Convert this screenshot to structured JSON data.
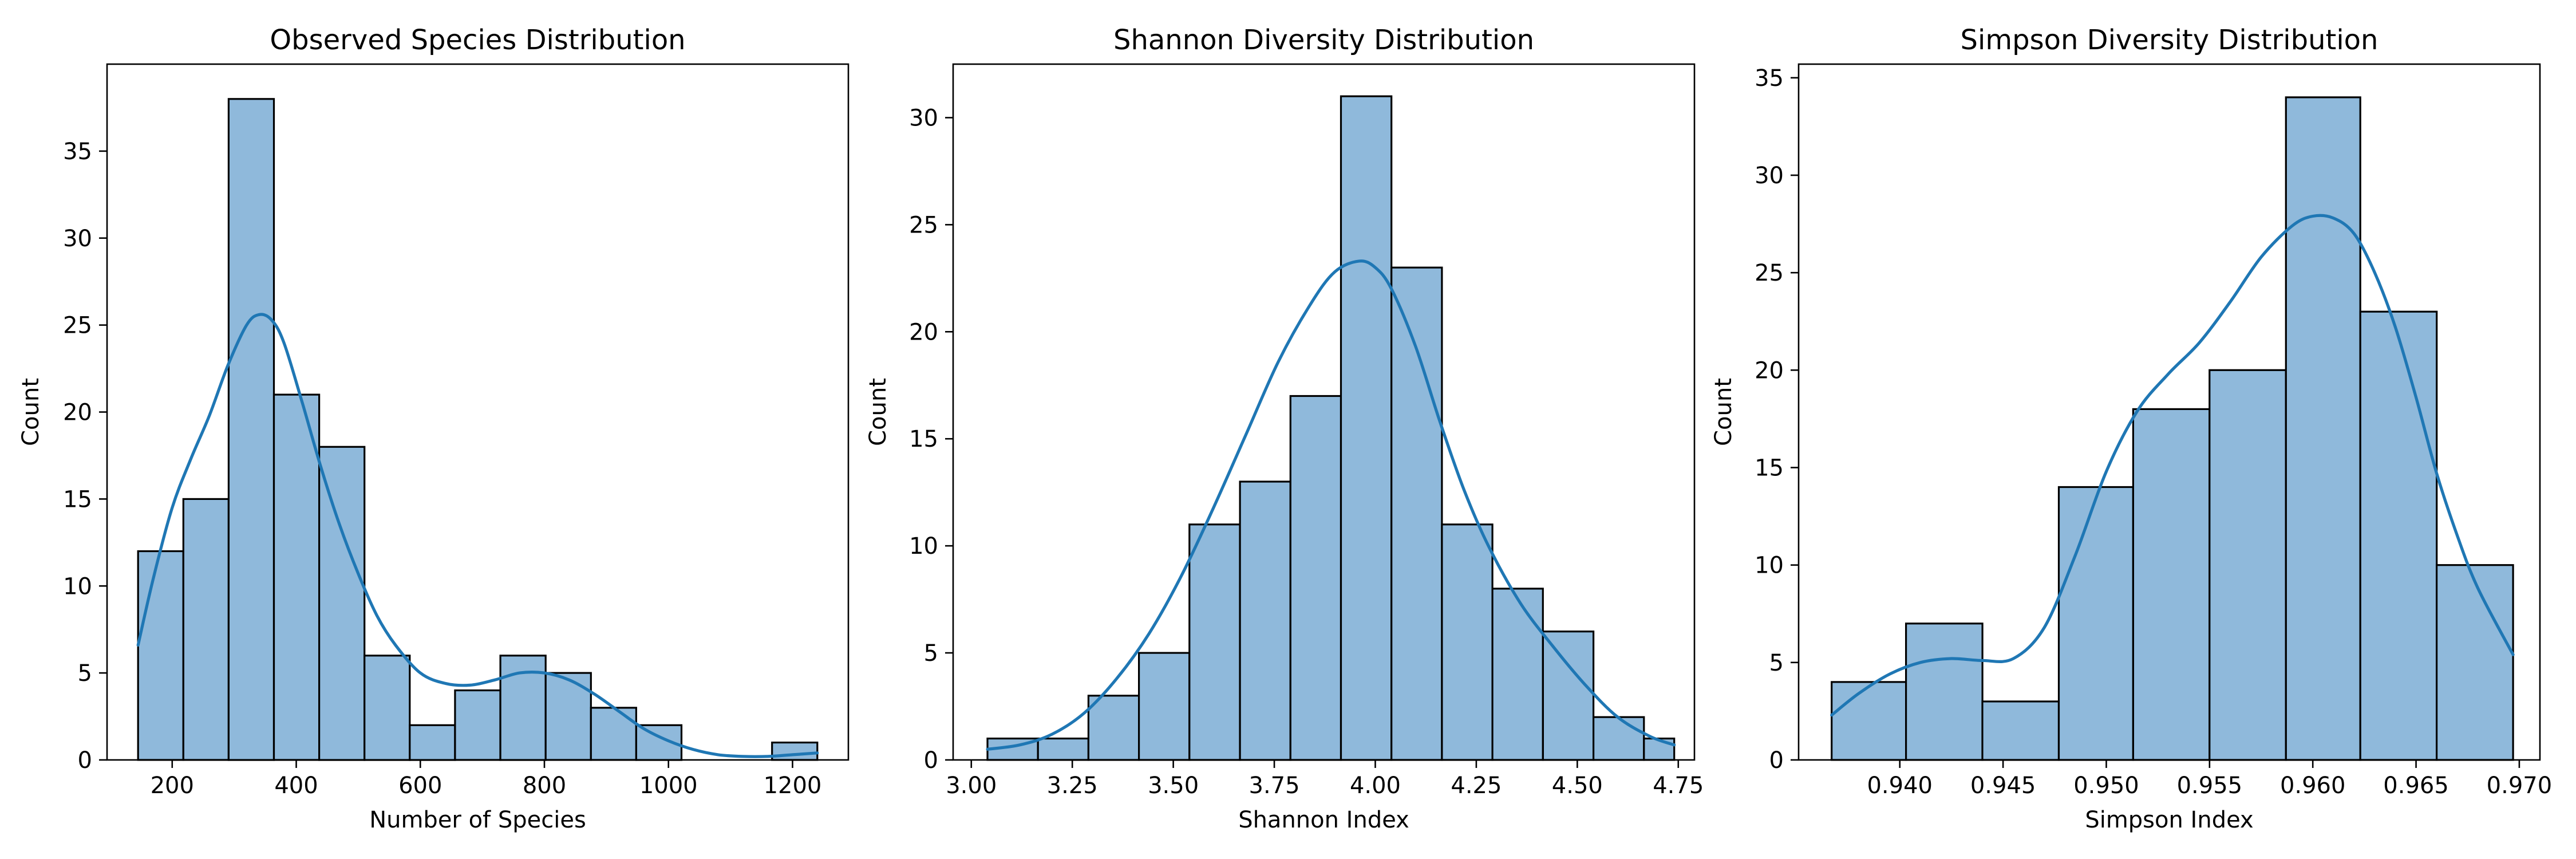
{
  "figure": {
    "background": "#ffffff",
    "bar_fill": "#8fb9db",
    "bar_edge": "#000000",
    "kde_color": "#1f77b4"
  },
  "chart_data": [
    {
      "type": "bar",
      "title": "Observed Species Distribution",
      "xlabel": "Number of Species",
      "ylabel": "Count",
      "xlim": [
        95,
        1290
      ],
      "ylim": [
        0,
        40
      ],
      "xticks": [
        200,
        400,
        600,
        800,
        1000,
        1200
      ],
      "yticks": [
        0,
        5,
        10,
        15,
        20,
        25,
        30,
        35
      ],
      "bin_edges": [
        145,
        218,
        291,
        364,
        437,
        510,
        583,
        656,
        729,
        802,
        875,
        948,
        1021,
        1094,
        1167,
        1240
      ],
      "counts": [
        12,
        15,
        38,
        21,
        18,
        6,
        2,
        4,
        6,
        5,
        3,
        2,
        0,
        0,
        1
      ],
      "kde": {
        "x": [
          145,
          170,
          200,
          230,
          260,
          290,
          320,
          340,
          360,
          380,
          410,
          440,
          470,
          500,
          530,
          560,
          600,
          640,
          680,
          720,
          760,
          800,
          840,
          880,
          920,
          960,
          1000,
          1040,
          1080,
          1120,
          1160,
          1200,
          1240
        ],
        "y": [
          6.6,
          10.5,
          14.5,
          17.3,
          19.8,
          22.7,
          25.0,
          25.6,
          25.3,
          24.0,
          20.5,
          16.8,
          13.5,
          10.7,
          8.3,
          6.6,
          5.0,
          4.4,
          4.3,
          4.6,
          5.0,
          5.0,
          4.6,
          3.8,
          2.8,
          1.8,
          1.1,
          0.6,
          0.3,
          0.2,
          0.2,
          0.3,
          0.4
        ]
      }
    },
    {
      "type": "bar",
      "title": "Shannon Diversity Distribution",
      "xlabel": "Shannon Index",
      "ylabel": "Count",
      "xlim": [
        2.955,
        4.79
      ],
      "ylim": [
        0,
        32.5
      ],
      "xticks": [
        3.0,
        3.25,
        3.5,
        3.75,
        4.0,
        4.25,
        4.5,
        4.75
      ],
      "tick_labels": [
        "3.00",
        "3.25",
        "3.50",
        "3.75",
        "4.00",
        "4.25",
        "4.50",
        "4.75"
      ],
      "yticks": [
        0,
        5,
        10,
        15,
        20,
        25,
        30
      ],
      "bin_edges": [
        3.04,
        3.165,
        3.29,
        3.415,
        3.54,
        3.665,
        3.79,
        3.915,
        4.04,
        4.165,
        4.29,
        4.415,
        4.54,
        4.665,
        4.74
      ],
      "counts": [
        1,
        1,
        3,
        5,
        11,
        13,
        17,
        31,
        23,
        11,
        8,
        6,
        2,
        1
      ],
      "kde": {
        "x": [
          3.04,
          3.12,
          3.2,
          3.28,
          3.36,
          3.44,
          3.52,
          3.6,
          3.68,
          3.76,
          3.84,
          3.9,
          3.96,
          4.0,
          4.04,
          4.1,
          4.16,
          4.22,
          4.28,
          4.36,
          4.44,
          4.52,
          4.6,
          4.68,
          4.74
        ],
        "y": [
          0.5,
          0.7,
          1.2,
          2.2,
          3.8,
          5.9,
          8.6,
          11.8,
          15.2,
          18.6,
          21.3,
          22.8,
          23.3,
          23.0,
          22.0,
          19.3,
          15.8,
          12.6,
          10.0,
          7.3,
          5.3,
          3.5,
          2.0,
          1.1,
          0.7
        ]
      }
    },
    {
      "type": "bar",
      "title": "Simpson Diversity Distribution",
      "xlabel": "Simpson Index",
      "ylabel": "Count",
      "xlim": [
        0.9351,
        0.971
      ],
      "ylim": [
        0,
        35.7
      ],
      "xticks": [
        0.94,
        0.945,
        0.95,
        0.955,
        0.96,
        0.965,
        0.97
      ],
      "tick_labels": [
        "0.940",
        "0.945",
        "0.950",
        "0.955",
        "0.960",
        "0.965",
        "0.970"
      ],
      "yticks": [
        0,
        5,
        10,
        15,
        20,
        25,
        30,
        35
      ],
      "bin_edges": [
        0.9367,
        0.9403,
        0.944,
        0.9477,
        0.9513,
        0.955,
        0.9587,
        0.9623,
        0.966,
        0.9697
      ],
      "counts": [
        4,
        7,
        3,
        14,
        18,
        20,
        34,
        23,
        10
      ],
      "kde": {
        "x": [
          0.9367,
          0.938,
          0.9395,
          0.941,
          0.9425,
          0.944,
          0.9455,
          0.947,
          0.9485,
          0.95,
          0.9515,
          0.953,
          0.9545,
          0.956,
          0.9575,
          0.959,
          0.96,
          0.961,
          0.962,
          0.963,
          0.964,
          0.965,
          0.966,
          0.967,
          0.968,
          0.9697
        ],
        "y": [
          2.3,
          3.4,
          4.4,
          5.0,
          5.2,
          5.1,
          5.2,
          6.8,
          10.5,
          14.8,
          17.9,
          19.8,
          21.4,
          23.5,
          25.8,
          27.4,
          27.9,
          27.8,
          27.0,
          25.0,
          22.2,
          18.6,
          14.7,
          11.5,
          8.8,
          5.4
        ]
      }
    }
  ]
}
